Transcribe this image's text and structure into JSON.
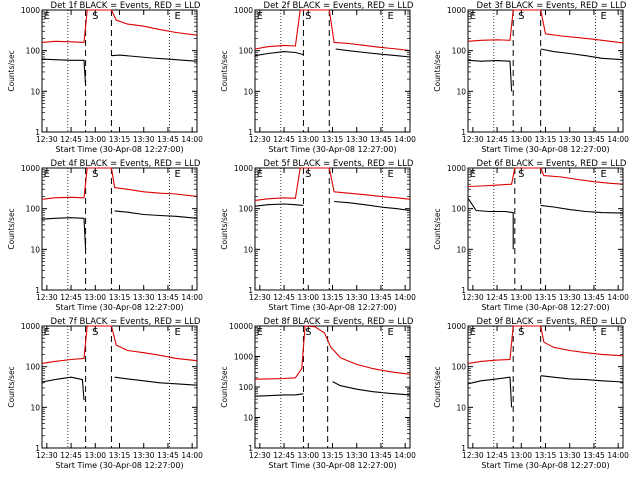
{
  "figure": {
    "background": "#ffffff",
    "colors": {
      "events": "#000000",
      "lld": "#dd0000",
      "axis": "#000000"
    }
  },
  "chart_data": [
    {
      "type": "line",
      "title": "Det 1f BLACK = Events, RED = LLD",
      "xlabel": "Start Time (30-Apr-08 12:27:00)",
      "ylabel": "Counts/sec",
      "yscale": "log",
      "ylim": [
        1,
        1000
      ],
      "yticks": [
        1,
        10,
        100,
        1000
      ],
      "ytick_labels": [
        "1",
        "10",
        "100",
        "1000"
      ],
      "xlim": [
        "12:27",
        "14:03"
      ],
      "xticks": [
        "12:30",
        "12:45",
        "13:00",
        "13:15",
        "13:30",
        "13:45",
        "14:00"
      ],
      "event_markers": {
        "E_start": "12:30",
        "S": "13:00",
        "E_end": "13:51"
      },
      "dashed_lines": [
        "12:54",
        "13:10"
      ],
      "dotted_lines": [
        "12:43",
        "13:46"
      ],
      "grid": false,
      "series": [
        {
          "name": "Events",
          "color": "#000000",
          "x": [
            "12:27",
            "12:35",
            "12:45",
            "12:53",
            "12:54",
            "12:57",
            "13:05",
            "13:10",
            "13:10",
            "13:15",
            "13:25",
            "13:35",
            "13:45",
            "13:55",
            "14:03"
          ],
          "y": [
            62,
            60,
            58,
            58,
            14,
            null,
            null,
            null,
            75,
            78,
            72,
            66,
            62,
            58,
            55
          ]
        },
        {
          "name": "LLD",
          "color": "#dd0000",
          "x": [
            "12:27",
            "12:35",
            "12:45",
            "12:53",
            "12:55",
            "13:05",
            "13:10",
            "13:13",
            "13:20",
            "13:30",
            "13:40",
            "13:50",
            "14:03"
          ],
          "y": [
            160,
            170,
            165,
            160,
            1000,
            1000,
            1000,
            560,
            450,
            400,
            330,
            280,
            240
          ]
        }
      ]
    },
    {
      "type": "line",
      "title": "Det 2f BLACK = Events, RED = LLD",
      "xlabel": "Start Time (30-Apr-08 12:27:00)",
      "ylabel": "Counts/sec",
      "yscale": "log",
      "ylim": [
        1,
        1000
      ],
      "yticks": [
        1,
        10,
        100,
        1000
      ],
      "ytick_labels": [
        "1",
        "10",
        "100",
        "1000"
      ],
      "xlim": [
        "12:27",
        "14:03"
      ],
      "xticks": [
        "12:30",
        "12:45",
        "13:00",
        "13:15",
        "13:30",
        "13:45",
        "14:00"
      ],
      "event_markers": {
        "E_start": "12:30",
        "S": "13:00",
        "E_end": "13:51"
      },
      "dashed_lines": [
        "12:57",
        "13:13"
      ],
      "dotted_lines": [
        "12:43",
        "13:46"
      ],
      "grid": false,
      "series": [
        {
          "name": "Events",
          "color": "#000000",
          "x": [
            "12:27",
            "12:35",
            "12:45",
            "12:52",
            "12:57",
            "13:13",
            "13:17",
            "13:25",
            "13:35",
            "13:45",
            "13:55",
            "14:03"
          ],
          "y": [
            75,
            85,
            95,
            90,
            80,
            null,
            110,
            100,
            90,
            82,
            75,
            70
          ]
        },
        {
          "name": "LLD",
          "color": "#dd0000",
          "x": [
            "12:27",
            "12:35",
            "12:45",
            "12:52",
            "12:55",
            "13:05",
            "13:13",
            "13:16",
            "13:25",
            "13:35",
            "13:45",
            "13:55",
            "14:03"
          ],
          "y": [
            110,
            125,
            135,
            130,
            1000,
            1000,
            1000,
            160,
            150,
            135,
            120,
            110,
            100
          ]
        }
      ]
    },
    {
      "type": "line",
      "title": "Det 3f BLACK = Events, RED = LLD",
      "xlabel": "Start Time (30-Apr-08 12:27:00)",
      "ylabel": "Counts/sec",
      "yscale": "log",
      "ylim": [
        1,
        1000
      ],
      "yticks": [
        1,
        10,
        100,
        1000
      ],
      "ytick_labels": [
        "1",
        "10",
        "100",
        "1000"
      ],
      "xlim": [
        "12:27",
        "14:03"
      ],
      "xticks": [
        "12:30",
        "12:45",
        "13:00",
        "13:15",
        "13:30",
        "13:45",
        "14:00"
      ],
      "event_markers": {
        "E_start": "12:30",
        "S": "13:00",
        "E_end": "13:51"
      },
      "dashed_lines": [
        "12:55",
        "13:12"
      ],
      "dotted_lines": [
        "12:43",
        "13:46"
      ],
      "grid": false,
      "series": [
        {
          "name": "Events",
          "color": "#000000",
          "x": [
            "12:27",
            "12:35",
            "12:45",
            "12:53",
            "12:54",
            "12:57",
            "13:10",
            "13:12",
            "13:20",
            "13:30",
            "13:40",
            "13:50",
            "14:03"
          ],
          "y": [
            58,
            55,
            57,
            55,
            10,
            null,
            null,
            110,
            95,
            85,
            75,
            65,
            60
          ]
        },
        {
          "name": "LLD",
          "color": "#dd0000",
          "x": [
            "12:27",
            "12:35",
            "12:45",
            "12:53",
            "12:55",
            "13:05",
            "13:12",
            "13:15",
            "13:25",
            "13:35",
            "13:45",
            "13:55",
            "14:03"
          ],
          "y": [
            170,
            180,
            185,
            180,
            1000,
            1000,
            1000,
            260,
            230,
            210,
            190,
            170,
            155
          ]
        }
      ]
    },
    {
      "type": "line",
      "title": "Det 4f BLACK = Events, RED = LLD",
      "xlabel": "Start Time (30-Apr-08 12:27:00)",
      "ylabel": "Counts/sec",
      "yscale": "log",
      "ylim": [
        1,
        1000
      ],
      "yticks": [
        1,
        10,
        100,
        1000
      ],
      "ytick_labels": [
        "1",
        "10",
        "100",
        "1000"
      ],
      "xlim": [
        "12:27",
        "14:03"
      ],
      "xticks": [
        "12:30",
        "12:45",
        "13:00",
        "13:15",
        "13:30",
        "13:45",
        "14:00"
      ],
      "event_markers": {
        "E_start": "12:30",
        "S": "13:00",
        "E_end": "13:51"
      },
      "dashed_lines": [
        "12:54",
        "13:10"
      ],
      "dotted_lines": [
        "12:43",
        "13:46"
      ],
      "grid": false,
      "series": [
        {
          "name": "Events",
          "color": "#000000",
          "x": [
            "12:27",
            "12:35",
            "12:45",
            "12:53",
            "12:54",
            "12:57",
            "13:05",
            "13:10",
            "13:12",
            "13:20",
            "13:30",
            "13:40",
            "13:50",
            "14:03"
          ],
          "y": [
            55,
            58,
            60,
            58,
            10,
            null,
            null,
            null,
            88,
            82,
            72,
            68,
            65,
            58
          ]
        },
        {
          "name": "LLD",
          "color": "#dd0000",
          "x": [
            "12:27",
            "12:35",
            "12:45",
            "12:53",
            "12:55",
            "13:05",
            "13:10",
            "13:12",
            "13:20",
            "13:30",
            "13:40",
            "13:50",
            "14:03"
          ],
          "y": [
            170,
            185,
            190,
            185,
            1000,
            1000,
            1000,
            330,
            300,
            260,
            240,
            230,
            200
          ]
        }
      ]
    },
    {
      "type": "line",
      "title": "Det 5f BLACK = Events, RED = LLD",
      "xlabel": "Start Time (30-Apr-08 12:27:00)",
      "ylabel": "Counts/sec",
      "yscale": "log",
      "ylim": [
        1,
        1000
      ],
      "yticks": [
        1,
        10,
        100,
        1000
      ],
      "ytick_labels": [
        "1",
        "10",
        "100",
        "1000"
      ],
      "xlim": [
        "12:27",
        "14:03"
      ],
      "xticks": [
        "12:30",
        "12:45",
        "13:00",
        "13:15",
        "13:30",
        "13:45",
        "14:00"
      ],
      "event_markers": {
        "E_start": "12:30",
        "S": "13:00",
        "E_end": "13:51"
      },
      "dashed_lines": [
        "12:57",
        "13:13"
      ],
      "dotted_lines": [
        "12:43",
        "13:46"
      ],
      "grid": false,
      "series": [
        {
          "name": "Events",
          "color": "#000000",
          "x": [
            "12:27",
            "12:35",
            "12:45",
            "12:52",
            "12:57",
            "13:13",
            "13:16",
            "13:25",
            "13:35",
            "13:45",
            "13:55",
            "14:03"
          ],
          "y": [
            115,
            125,
            130,
            125,
            120,
            null,
            150,
            140,
            125,
            110,
            100,
            90
          ]
        },
        {
          "name": "LLD",
          "color": "#dd0000",
          "x": [
            "12:27",
            "12:35",
            "12:45",
            "12:52",
            "12:55",
            "13:05",
            "13:13",
            "13:16",
            "13:25",
            "13:35",
            "13:45",
            "13:55",
            "14:03"
          ],
          "y": [
            160,
            175,
            185,
            180,
            1000,
            1000,
            1000,
            260,
            240,
            220,
            200,
            185,
            170
          ]
        }
      ]
    },
    {
      "type": "line",
      "title": "Det 6f BLACK = Events, RED = LLD",
      "xlabel": "Start Time (30-Apr-08 12:27:00)",
      "ylabel": "Counts/sec",
      "yscale": "log",
      "ylim": [
        1,
        1000
      ],
      "yticks": [
        1,
        10,
        100,
        1000
      ],
      "ytick_labels": [
        "1",
        "10",
        "100",
        "1000"
      ],
      "xlim": [
        "12:27",
        "14:03"
      ],
      "xticks": [
        "12:30",
        "12:45",
        "13:00",
        "13:15",
        "13:30",
        "13:45",
        "14:00"
      ],
      "event_markers": {
        "E_start": "12:30",
        "S": "13:00",
        "E_end": "13:51"
      },
      "dashed_lines": [
        "12:56",
        "13:12"
      ],
      "dotted_lines": [
        "12:43",
        "13:46"
      ],
      "grid": false,
      "series": [
        {
          "name": "Events",
          "color": "#000000",
          "x": [
            "12:27",
            "12:30",
            "12:32",
            "12:40",
            "12:50",
            "12:55",
            "12:55",
            "12:57",
            "13:10",
            "13:12",
            "13:20",
            "13:30",
            "13:40",
            "13:50",
            "14:03"
          ],
          "y": [
            180,
            120,
            90,
            85,
            85,
            80,
            10,
            null,
            null,
            120,
            110,
            95,
            85,
            80,
            78
          ]
        },
        {
          "name": "LLD",
          "color": "#dd0000",
          "x": [
            "12:27",
            "12:35",
            "12:45",
            "12:54",
            "12:56",
            "13:05",
            "13:12",
            "13:14",
            "13:25",
            "13:35",
            "13:45",
            "13:55",
            "14:03"
          ],
          "y": [
            350,
            360,
            380,
            400,
            1000,
            1000,
            1000,
            650,
            600,
            520,
            460,
            420,
            400
          ]
        }
      ]
    },
    {
      "type": "line",
      "title": "Det 7f BLACK = Events, RED = LLD",
      "xlabel": "Start Time (30-Apr-08 12:27:00)",
      "ylabel": "Counts/sec",
      "yscale": "log",
      "ylim": [
        1,
        1000
      ],
      "yticks": [
        1,
        10,
        100,
        1000
      ],
      "ytick_labels": [
        "1",
        "10",
        "100",
        "1000"
      ],
      "xlim": [
        "12:27",
        "14:03"
      ],
      "xticks": [
        "12:30",
        "12:45",
        "13:00",
        "13:15",
        "13:30",
        "13:45",
        "14:00"
      ],
      "event_markers": {
        "E_start": "12:30",
        "S": "13:00",
        "E_end": "13:51"
      },
      "dashed_lines": [
        "12:54",
        "13:10"
      ],
      "dotted_lines": [
        "12:43",
        "13:46"
      ],
      "grid": false,
      "series": [
        {
          "name": "Events",
          "color": "#000000",
          "x": [
            "12:27",
            "12:35",
            "12:45",
            "12:52",
            "12:53",
            "12:57",
            "13:05",
            "13:10",
            "13:12",
            "13:20",
            "13:30",
            "13:40",
            "13:50",
            "14:03"
          ],
          "y": [
            42,
            48,
            55,
            48,
            15,
            null,
            null,
            null,
            55,
            50,
            45,
            40,
            38,
            35
          ]
        },
        {
          "name": "LLD",
          "color": "#dd0000",
          "x": [
            "12:27",
            "12:35",
            "12:45",
            "12:53",
            "12:55",
            "13:05",
            "13:10",
            "13:13",
            "13:20",
            "13:30",
            "13:40",
            "13:50",
            "14:03"
          ],
          "y": [
            120,
            135,
            150,
            160,
            1000,
            1000,
            1000,
            340,
            250,
            220,
            190,
            160,
            140
          ]
        }
      ]
    },
    {
      "type": "line",
      "title": "Det 8f BLACK = Events, RED = LLD",
      "xlabel": "Start Time (30-Apr-08 12:27:00)",
      "ylabel": "Counts/sec",
      "yscale": "log",
      "ylim": [
        1,
        10000
      ],
      "yticks": [
        1,
        10,
        100,
        1000,
        10000
      ],
      "ytick_labels": [
        "1",
        "10",
        "100",
        "1000",
        "10000"
      ],
      "xlim": [
        "12:27",
        "14:03"
      ],
      "xticks": [
        "12:30",
        "12:45",
        "13:00",
        "13:15",
        "13:30",
        "13:45",
        "14:00"
      ],
      "event_markers": {
        "E_start": "12:30",
        "S": "13:00",
        "E_end": "13:51"
      },
      "dashed_lines": [
        "12:57",
        "13:12"
      ],
      "dotted_lines": [
        "12:43",
        "13:46"
      ],
      "grid": false,
      "series": [
        {
          "name": "Events",
          "color": "#000000",
          "x": [
            "12:27",
            "12:35",
            "12:45",
            "12:52",
            "12:57",
            "13:12",
            "13:15",
            "13:20",
            "13:30",
            "13:40",
            "13:50",
            "14:03"
          ],
          "y": [
            50,
            52,
            55,
            55,
            60,
            null,
            150,
            110,
            85,
            70,
            62,
            55
          ]
        },
        {
          "name": "LLD",
          "color": "#dd0000",
          "x": [
            "12:27",
            "12:35",
            "12:45",
            "12:52",
            "12:56",
            "12:58",
            "13:04",
            "13:10",
            "13:14",
            "13:20",
            "13:30",
            "13:40",
            "13:50",
            "14:03"
          ],
          "y": [
            180,
            185,
            190,
            200,
            400,
            10000,
            9500,
            6000,
            2000,
            900,
            550,
            400,
            320,
            260
          ]
        }
      ]
    },
    {
      "type": "line",
      "title": "Det 9f BLACK = Events, RED = LLD",
      "xlabel": "Start Time (30-Apr-08 12:27:00)",
      "ylabel": "Counts/sec",
      "yscale": "log",
      "ylim": [
        1,
        1000
      ],
      "yticks": [
        1,
        10,
        100,
        1000
      ],
      "ytick_labels": [
        "1",
        "10",
        "100",
        "1000"
      ],
      "xlim": [
        "12:27",
        "14:03"
      ],
      "xticks": [
        "12:30",
        "12:45",
        "13:00",
        "13:15",
        "13:30",
        "13:45",
        "14:00"
      ],
      "event_markers": {
        "E_start": "12:30",
        "S": "13:00",
        "E_end": "13:51"
      },
      "dashed_lines": [
        "12:55",
        "13:12"
      ],
      "dotted_lines": [
        "12:43",
        "13:46"
      ],
      "grid": false,
      "series": [
        {
          "name": "Events",
          "color": "#000000",
          "x": [
            "12:27",
            "12:35",
            "12:45",
            "12:53",
            "12:54",
            "12:57",
            "13:10",
            "13:12",
            "13:20",
            "13:30",
            "13:40",
            "13:50",
            "14:03"
          ],
          "y": [
            38,
            45,
            50,
            55,
            10,
            null,
            null,
            60,
            55,
            50,
            48,
            45,
            42
          ]
        },
        {
          "name": "LLD",
          "color": "#dd0000",
          "x": [
            "12:27",
            "12:35",
            "12:45",
            "12:53",
            "12:55",
            "13:05",
            "13:12",
            "13:14",
            "13:20",
            "13:30",
            "13:40",
            "13:50",
            "14:03"
          ],
          "y": [
            120,
            135,
            145,
            150,
            1000,
            1000,
            1000,
            400,
            300,
            250,
            220,
            200,
            185
          ]
        }
      ]
    }
  ]
}
